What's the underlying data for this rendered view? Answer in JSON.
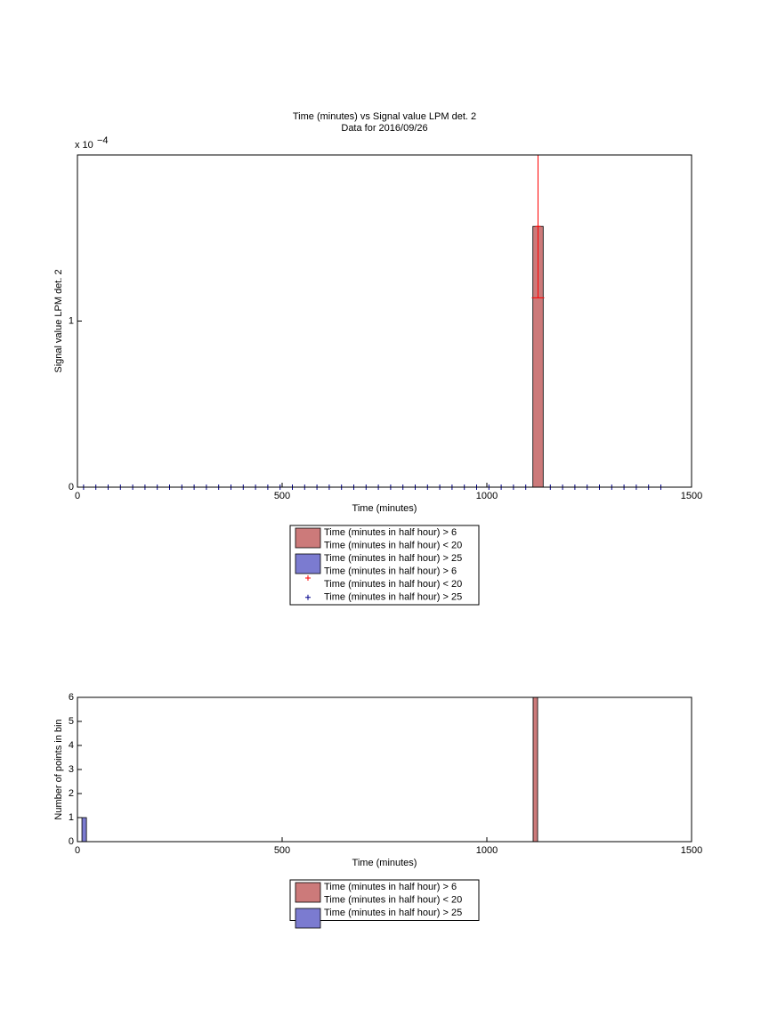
{
  "chart_data": [
    {
      "type": "bar",
      "title": [
        "Time (minutes) vs Signal value LPM det. 2",
        "Data for 2016/09/26"
      ],
      "xlabel": "Time (minutes)",
      "ylabel": "Signal value LPM det. 2",
      "y_multiplier": {
        "base": "x 10",
        "exponent": "−4"
      },
      "xlim": [
        0,
        1500
      ],
      "xticks": [
        0,
        500,
        1000,
        1500
      ],
      "ylim": [
        0,
        2
      ],
      "yticks": [
        0,
        1
      ],
      "series": [
        {
          "name": [
            "Time (minutes in half hour) > 6",
            "Time (minutes in half hour) < 20"
          ],
          "kind": "bar",
          "color": "#cc7a7a",
          "x": [
            1125
          ],
          "values": [
            1.57
          ],
          "errors": [
            0.43
          ],
          "error_color": "#ff0000"
        },
        {
          "name": [
            "Time (minutes in half hour) > 25"
          ],
          "kind": "bar",
          "color": "#7b7bd0",
          "x": [],
          "values": []
        },
        {
          "name": [
            "Time (minutes in half hour) > 6",
            "Time (minutes in half hour) < 20"
          ],
          "kind": "marker",
          "color": "#ff0000",
          "x": [
            1125
          ],
          "values": [
            1.57
          ]
        },
        {
          "name": [
            "Time (minutes in half hour) > 25"
          ],
          "kind": "marker",
          "color": "#00008b",
          "x": [
            15,
            45,
            75,
            105,
            135,
            165,
            195,
            225,
            255,
            285,
            315,
            345,
            375,
            405,
            435,
            465,
            495,
            525,
            555,
            585,
            615,
            645,
            675,
            705,
            735,
            765,
            795,
            825,
            855,
            885,
            915,
            945,
            975,
            1005,
            1035,
            1065,
            1095,
            1155,
            1185,
            1215,
            1245,
            1275,
            1305,
            1335,
            1365,
            1395,
            1425
          ],
          "values": [
            0,
            0,
            0,
            0,
            0,
            0,
            0,
            0,
            0,
            0,
            0,
            0,
            0,
            0,
            0,
            0,
            0,
            0,
            0,
            0,
            0,
            0,
            0,
            0,
            0,
            0,
            0,
            0,
            0,
            0,
            0,
            0,
            0,
            0,
            0,
            0,
            0,
            0,
            0,
            0,
            0,
            0,
            0,
            0,
            0,
            0,
            0
          ]
        }
      ]
    },
    {
      "type": "histogram",
      "xlabel": "Time (minutes)",
      "ylabel": "Number of points in bin",
      "xlim": [
        0,
        1500
      ],
      "xticks": [
        0,
        500,
        1000,
        1500
      ],
      "ylim": [
        0,
        6
      ],
      "yticks": [
        0,
        1,
        2,
        3,
        4,
        5,
        6
      ],
      "series": [
        {
          "name": [
            "Time (minutes in half hour) > 6",
            "Time (minutes in half hour) < 20"
          ],
          "color": "#cc7a7a",
          "bins": [
            1113,
            1124
          ],
          "values": [
            6
          ]
        },
        {
          "name": [
            "Time (minutes in half hour) > 25"
          ],
          "color": "#7b7bd0",
          "bins": [
            11,
            22
          ],
          "values": [
            1
          ]
        }
      ]
    }
  ]
}
